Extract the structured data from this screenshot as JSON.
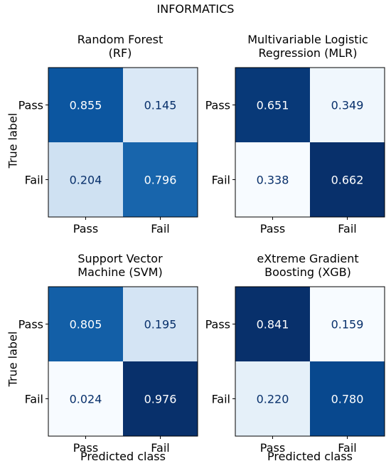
{
  "figure_title": "INFORMATICS",
  "chart_data": [
    {
      "type": "heatmap",
      "title_line1": "Random Forest",
      "title_line2": "(RF)",
      "ylabel": "True label",
      "xlabel": "",
      "row_labels": [
        "Pass",
        "Fail"
      ],
      "col_labels": [
        "Pass",
        "Fail"
      ],
      "values": [
        [
          0.855,
          0.145
        ],
        [
          0.204,
          0.796
        ]
      ],
      "value_labels": [
        [
          "0.855",
          "0.145"
        ],
        [
          "0.204",
          "0.796"
        ]
      ],
      "colormap": "Blues",
      "vlim": [
        0,
        1
      ]
    },
    {
      "type": "heatmap",
      "title_line1": "Multivariable Logistic",
      "title_line2": "Regression (MLR)",
      "ylabel": "",
      "xlabel": "",
      "row_labels": [
        "Pass",
        "Fail"
      ],
      "col_labels": [
        "Pass",
        "Fail"
      ],
      "values": [
        [
          0.651,
          0.349
        ],
        [
          0.338,
          0.662
        ]
      ],
      "value_labels": [
        [
          "0.651",
          "0.349"
        ],
        [
          "0.338",
          "0.662"
        ]
      ],
      "colormap": "Blues",
      "vlim": [
        0.338,
        0.662
      ]
    },
    {
      "type": "heatmap",
      "title_line1": "Support Vector",
      "title_line2": "Machine (SVM)",
      "ylabel": "True label",
      "xlabel": "Predicted class",
      "row_labels": [
        "Pass",
        "Fail"
      ],
      "col_labels": [
        "Pass",
        "Fail"
      ],
      "values": [
        [
          0.805,
          0.195
        ],
        [
          0.024,
          0.976
        ]
      ],
      "value_labels": [
        [
          "0.805",
          "0.195"
        ],
        [
          "0.024",
          "0.976"
        ]
      ],
      "colormap": "Blues",
      "vlim": [
        0.024,
        0.976
      ]
    },
    {
      "type": "heatmap",
      "title_line1": "eXtreme Gradient",
      "title_line2": "Boosting (XGB)",
      "ylabel": "",
      "xlabel": "Predicted class",
      "row_labels": [
        "Pass",
        "Fail"
      ],
      "col_labels": [
        "Pass",
        "Fail"
      ],
      "values": [
        [
          0.841,
          0.159
        ],
        [
          0.22,
          0.78
        ]
      ],
      "value_labels": [
        [
          "0.841",
          "0.159"
        ],
        [
          "0.220",
          "0.780"
        ]
      ],
      "colormap": "Blues",
      "vlim": [
        0.159,
        0.841
      ]
    }
  ]
}
